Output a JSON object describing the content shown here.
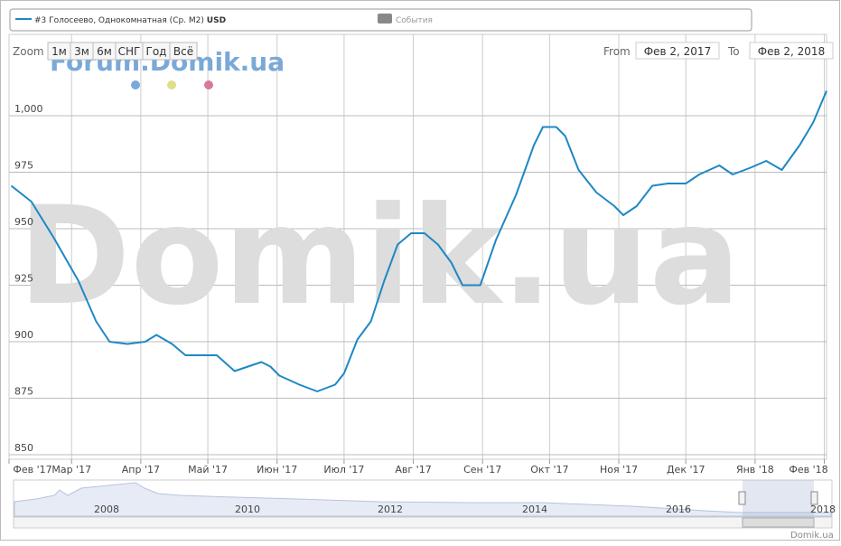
{
  "chart_data": {
    "type": "line",
    "series": [
      {
        "name": "#3 Голосеево, Однокомнатная (Ср. М2)",
        "unit": "USD",
        "color": "#1e88c4",
        "x": [
          0,
          9,
          19,
          30,
          38,
          44,
          52,
          60,
          65,
          72,
          78,
          92,
          100,
          112,
          116,
          120,
          129,
          137,
          145,
          149,
          155,
          161,
          167,
          173,
          179,
          185,
          191,
          197,
          202,
          210,
          217,
          226,
          234,
          238,
          244,
          248,
          254,
          262,
          270,
          274,
          280,
          287,
          294,
          302,
          308,
          317,
          323,
          331,
          338,
          345,
          353,
          359,
          365
        ],
        "values": [
          969,
          962,
          946,
          927,
          909,
          900,
          899,
          900,
          903,
          899,
          894,
          894,
          887,
          891,
          889,
          885,
          881,
          878,
          881,
          886,
          901,
          909,
          927,
          943,
          948,
          948,
          943,
          935,
          925,
          925,
          945,
          965,
          987,
          995,
          995,
          991,
          976,
          966,
          960,
          956,
          960,
          969,
          970,
          970,
          974,
          978,
          974,
          977,
          980,
          976,
          987,
          997,
          1011
        ]
      }
    ],
    "events_label": "События",
    "watermark": "Domik.ua",
    "xlim": [
      -1,
      365
    ],
    "xticks": [
      {
        "value": -1,
        "label": "Фев '17"
      },
      {
        "value": 27,
        "label": "Мар '17"
      },
      {
        "value": 58,
        "label": "Апр '17"
      },
      {
        "value": 88,
        "label": "Май '17"
      },
      {
        "value": 119,
        "label": "Июн '17"
      },
      {
        "value": 149,
        "label": "Июл '17"
      },
      {
        "value": 180,
        "label": "Авг '17"
      },
      {
        "value": 211,
        "label": "Сен '17"
      },
      {
        "value": 241,
        "label": "Окт '17"
      },
      {
        "value": 272,
        "label": "Ноя '17"
      },
      {
        "value": 302,
        "label": "Дек '17"
      },
      {
        "value": 333,
        "label": "Янв '18"
      },
      {
        "value": 364,
        "label": "Фев '18"
      }
    ],
    "ylim": [
      848,
      1036
    ],
    "yticks": [
      850,
      875,
      900,
      925,
      950,
      975,
      {
        "value": 1000,
        "label": "1,000"
      }
    ],
    "grid": true
  },
  "ui": {
    "forum": "Forum.Domik.ua",
    "zoom_label": "Zoom",
    "zoom_buttons": [
      "1м",
      "3м",
      "6м",
      "СНГ",
      "Год",
      "Всё"
    ],
    "from_label": "From",
    "from_value": "Фев 2, 2017",
    "to_label": "To",
    "to_value": "Фев 2, 2018",
    "navigator_years": [
      "2008",
      "2010",
      "2012",
      "2014",
      "2016",
      "2018"
    ],
    "credit": "Domik.ua"
  }
}
